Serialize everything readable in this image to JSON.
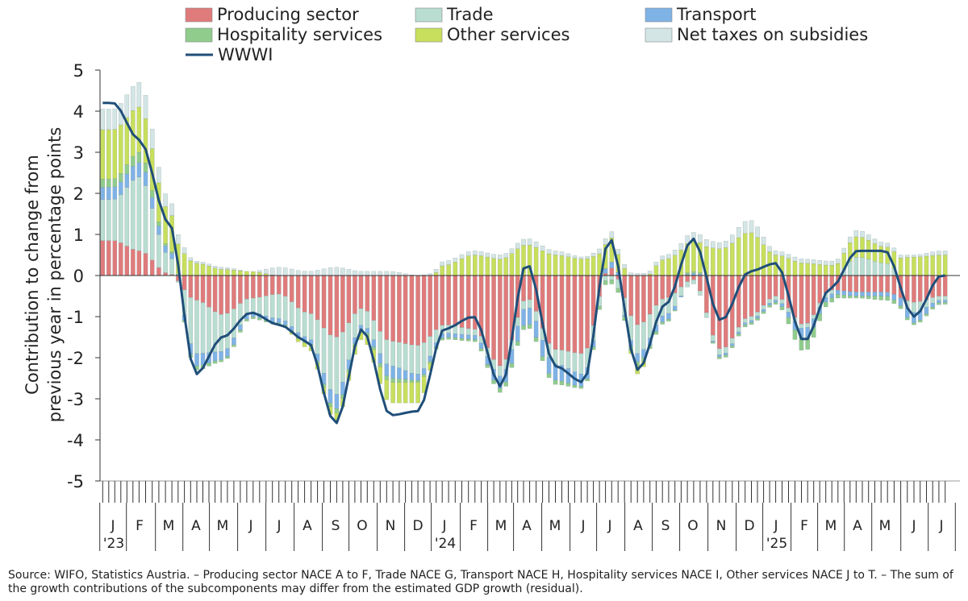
{
  "chart_data": {
    "type": "bar",
    "stacked": true,
    "title": "",
    "ylabel_line1": "Contribution to change from",
    "ylabel_line2": "previous year in percentage points",
    "ylim": [
      -5,
      5
    ],
    "yticks": [
      5,
      4,
      3,
      2,
      1,
      0,
      -1,
      -2,
      -3,
      -4,
      -5
    ],
    "grid": false,
    "legend_position": "top",
    "month_labels": [
      "J",
      "F",
      "M",
      "A",
      "M",
      "J",
      "J",
      "A",
      "S",
      "O",
      "N",
      "D",
      "J",
      "F",
      "M",
      "A",
      "M",
      "J",
      "J",
      "A",
      "S",
      "O",
      "N",
      "D",
      "J",
      "F",
      "M",
      "A",
      "M",
      "J",
      "J"
    ],
    "year_labels": [
      {
        "label": "'23",
        "month_index": 0
      },
      {
        "label": "'24",
        "month_index": 12
      },
      {
        "label": "'25",
        "month_index": 24
      }
    ],
    "weeks_per_month": 4.39,
    "monthly": {
      "producing_sector": [
        0.85,
        0.6,
        0.05,
        -0.6,
        -0.95,
        -0.55,
        -0.45,
        -0.9,
        -1.5,
        -0.8,
        -1.6,
        -1.7,
        -1.2,
        -1.3,
        -2.2,
        -0.55,
        -1.8,
        -1.9,
        0.2,
        -1.2,
        -0.55,
        -0.1,
        -1.8,
        -1.0,
        -0.5,
        -1.2,
        -0.35,
        -0.4,
        -0.4,
        -0.65,
        -0.5
      ],
      "trade": [
        1.0,
        1.8,
        0.45,
        -1.3,
        -0.9,
        -0.35,
        -0.6,
        -0.6,
        -1.4,
        -0.4,
        -0.6,
        -0.7,
        -0.2,
        -0.15,
        -0.25,
        -0.2,
        -0.35,
        -0.5,
        -0.1,
        -0.7,
        -0.4,
        -0.1,
        -0.15,
        -0.1,
        -0.1,
        -0.1,
        -0.1,
        0.45,
        0.3,
        -0.25,
        -0.1
      ],
      "transport": [
        0.3,
        0.35,
        0.15,
        -0.3,
        -0.2,
        -0.1,
        -0.1,
        -0.1,
        -0.35,
        -0.1,
        -0.3,
        -0.15,
        -0.1,
        -0.1,
        -0.3,
        -0.4,
        -0.4,
        -0.3,
        0.15,
        -0.2,
        -0.15,
        0.05,
        -0.05,
        -0.05,
        -0.05,
        -0.25,
        -0.1,
        -0.1,
        -0.1,
        -0.25,
        -0.05
      ],
      "hospitality": [
        0.2,
        0.25,
        0.05,
        -0.1,
        -0.05,
        -0.05,
        -0.05,
        -0.05,
        -0.1,
        -0.05,
        -0.1,
        -0.05,
        -0.05,
        -0.05,
        -0.1,
        -0.1,
        -0.1,
        -0.05,
        -0.1,
        -0.1,
        -0.05,
        0.05,
        -0.05,
        -0.05,
        -0.05,
        -0.3,
        -0.1,
        -0.05,
        -0.1,
        -0.05,
        -0.05
      ],
      "other_services": [
        1.2,
        1.1,
        0.9,
        0.3,
        0.15,
        0.1,
        0.0,
        -0.1,
        -0.2,
        -0.2,
        -0.5,
        -0.5,
        0.25,
        0.5,
        0.4,
        0.75,
        0.5,
        0.4,
        0.6,
        -0.2,
        0.4,
        0.75,
        0.65,
        1.05,
        0.5,
        0.3,
        0.25,
        0.5,
        0.4,
        0.45,
        0.5
      ],
      "net_taxes": [
        0.5,
        0.6,
        0.3,
        0.05,
        0.05,
        0.0,
        0.2,
        0.1,
        0.2,
        0.1,
        0.1,
        0.0,
        0.1,
        0.1,
        0.1,
        0.15,
        0.1,
        0.05,
        0.15,
        0.05,
        0.1,
        0.2,
        0.15,
        0.3,
        0.1,
        0.1,
        0.1,
        0.15,
        0.1,
        0.05,
        0.1
      ],
      "wwwi": [
        4.2,
        3.3,
        1.3,
        -2.4,
        -1.5,
        -0.9,
        -1.2,
        -1.6,
        -3.6,
        -1.3,
        -3.4,
        -3.3,
        -1.3,
        -1.0,
        -2.7,
        0.3,
        -2.2,
        -2.6,
        0.9,
        -2.3,
        -0.7,
        0.9,
        -1.1,
        0.1,
        0.3,
        -1.6,
        -0.3,
        0.6,
        0.6,
        -1.0,
        0.0
      ]
    },
    "series": [
      {
        "key": "producing_sector",
        "name": "Producing sector",
        "color": "#e07b7b"
      },
      {
        "key": "trade",
        "name": "Trade",
        "color": "#b9ddd1"
      },
      {
        "key": "transport",
        "name": "Transport",
        "color": "#7fb3e6"
      },
      {
        "key": "hospitality",
        "name": "Hospitality services",
        "color": "#90cc8c"
      },
      {
        "key": "other_services",
        "name": "Other services",
        "color": "#c7df5c"
      },
      {
        "key": "net_taxes",
        "name": "Net taxes on subsidies",
        "color": "#d3e5e5"
      },
      {
        "key": "wwwi",
        "name": "WWWI",
        "color": "#1f4e79",
        "kind": "line"
      }
    ]
  },
  "footer": {
    "source_line1": "Source: WIFO, Statistics Austria. – Producing sector NACE A to F, Trade NACE G, Transport NACE H, Hospitality services NACE I, Other services NACE J to T. – The sum of",
    "source_line2": "the growth contributions of the subcomponents may differ from the estimated GDP growth (residual)."
  }
}
